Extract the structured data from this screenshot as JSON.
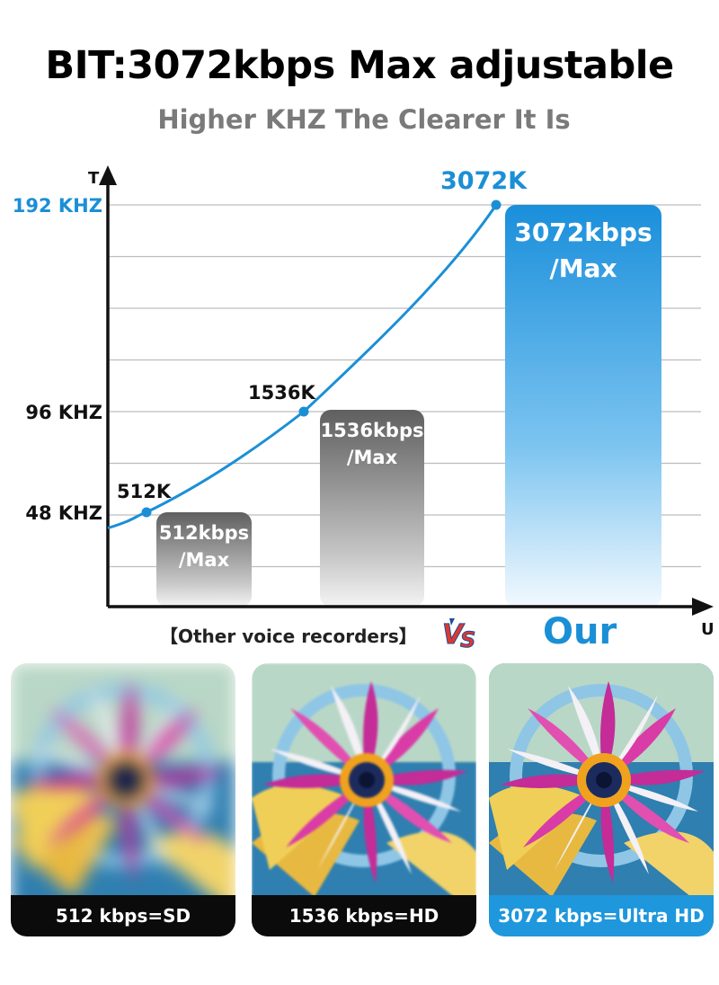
{
  "header": {
    "title": "BIT:3072kbps Max adjustable",
    "subtitle": "Higher KHZ The Clearer It Is"
  },
  "chart_data": {
    "type": "line",
    "y_axis_label": "T",
    "x_axis_label": "U",
    "y_ticks": [
      {
        "label": "192 KHZ",
        "value": 192,
        "highlight": true
      },
      {
        "label": "96 KHZ",
        "value": 96,
        "highlight": false
      },
      {
        "label": "48 KHZ",
        "value": 48,
        "highlight": false
      }
    ],
    "ylim": [
      0,
      192
    ],
    "grid": true,
    "points": [
      {
        "label": "512K",
        "y": 48,
        "highlight": false
      },
      {
        "label": "1536K",
        "y": 96,
        "highlight": false
      },
      {
        "label": "3072K",
        "y": 192,
        "highlight": true
      }
    ],
    "bars": [
      {
        "label_line1": "512kbps",
        "label_line2": "/Max",
        "value": 512,
        "style": "gray"
      },
      {
        "label_line1": "1536kbps",
        "label_line2": "/Max",
        "value": 1536,
        "style": "gray"
      },
      {
        "label_line1": "3072kbps",
        "label_line2": "/Max",
        "value": 3072,
        "style": "blue"
      }
    ],
    "colors": {
      "accent": "#1b8fd6",
      "axis": "#111111",
      "grid": "#bdbdbd",
      "bar_gray": "#6e6e6e",
      "bar_blue": "#1e97dc"
    }
  },
  "comparison": {
    "others_label": "【Other voice recorders】",
    "vs_icon": "vs-icon",
    "our_label": "Our"
  },
  "cards": [
    {
      "caption": "512 kbps=SD",
      "quality": "blurred"
    },
    {
      "caption": "1536 kbps=HD",
      "quality": "slightly-soft"
    },
    {
      "caption": "3072 kbps=Ultra HD",
      "quality": "sharp"
    }
  ]
}
